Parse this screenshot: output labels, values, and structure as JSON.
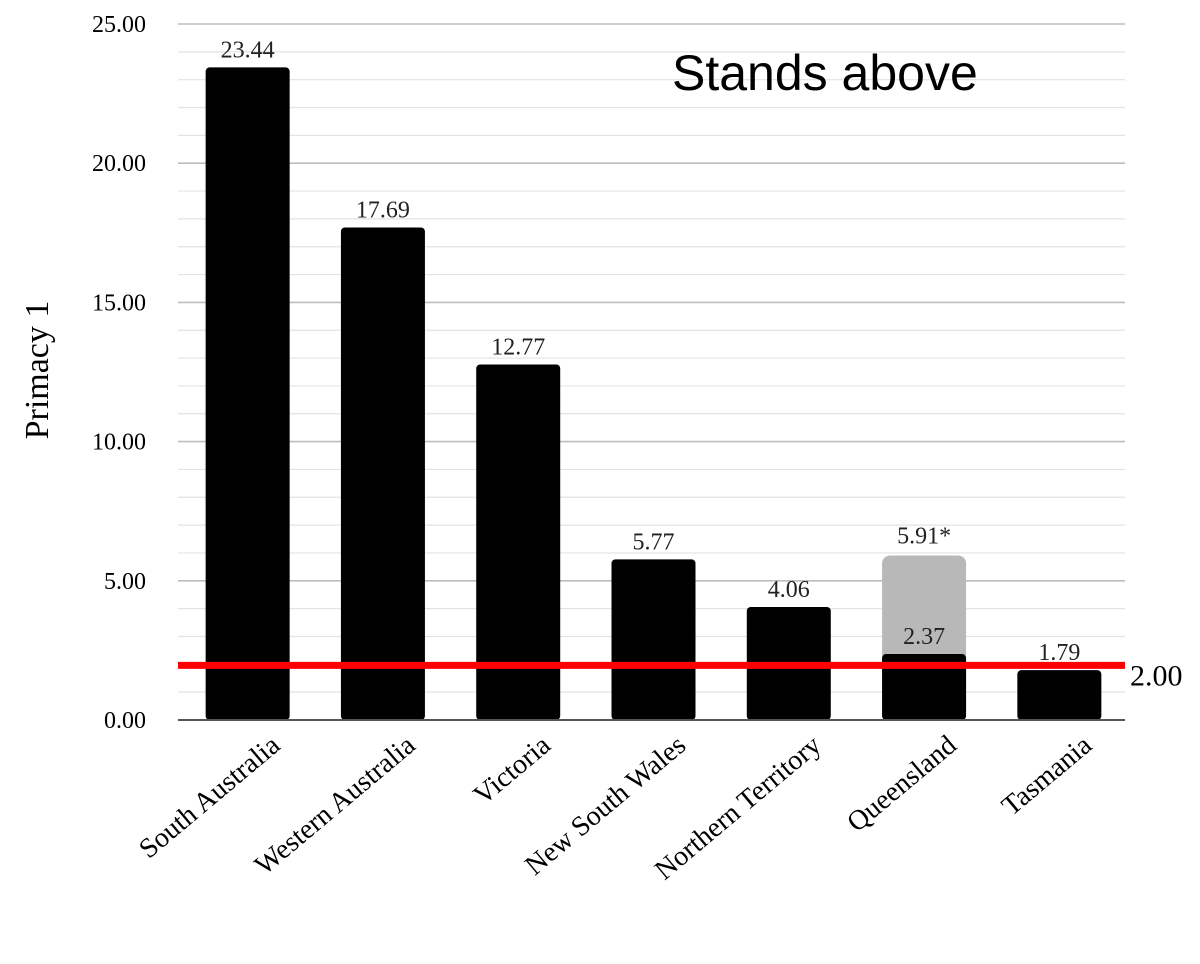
{
  "chart_data": {
    "type": "bar",
    "categories": [
      "South Australia",
      "Western Australia",
      "Victoria",
      "New South Wales",
      "Northern Territory",
      "Queensland",
      "Tasmania"
    ],
    "values": [
      23.44,
      17.69,
      12.77,
      5.77,
      4.06,
      2.37,
      1.79
    ],
    "value_labels": [
      "23.44",
      "17.69",
      "12.77",
      "5.77",
      "4.06",
      "2.37",
      "1.79"
    ],
    "secondary_bar": {
      "category": "Queensland",
      "value": 5.91,
      "label": "5.91*",
      "color": "#b8b8b8"
    },
    "ylabel": "Primacy 1",
    "ylim": [
      0,
      25
    ],
    "yticks": [
      "0.00",
      "5.00",
      "10.00",
      "15.00",
      "20.00",
      "25.00"
    ],
    "threshold": {
      "value": 2.0,
      "label": "2.00",
      "color": "#ff0000"
    },
    "annotation": "Stands above",
    "bar_color": "#000000",
    "grid": true
  }
}
